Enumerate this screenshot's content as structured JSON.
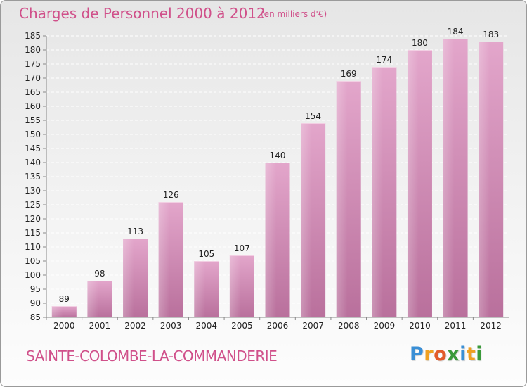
{
  "title": "Charges de Personnel 2000 à 2012",
  "subtitle": "(en milliers d'€)",
  "commune": "SAINTE-COLOMBE-LA-COMMANDERIE",
  "brand": {
    "letters": [
      "P",
      "r",
      "o",
      "x",
      "i",
      "t",
      "i"
    ],
    "colors": [
      "#3a8fd6",
      "#f0a020",
      "#e25b2b",
      "#3a9a3a",
      "#3a8fd6",
      "#f0a020",
      "#3a9a3a"
    ]
  },
  "colors": {
    "accent": "#d0508a",
    "bar_light": "#e3a6cb",
    "bar_dark": "#b9709c",
    "grid": "#ffffff",
    "text": "#222222"
  },
  "chart_data": {
    "type": "bar",
    "categories": [
      "2000",
      "2001",
      "2002",
      "2003",
      "2004",
      "2005",
      "2006",
      "2007",
      "2008",
      "2009",
      "2010",
      "2011",
      "2012"
    ],
    "values": [
      89,
      98,
      113,
      126,
      105,
      107,
      140,
      154,
      169,
      174,
      180,
      184,
      183
    ],
    "ylim": [
      85,
      185
    ],
    "yticks": [
      85,
      90,
      95,
      100,
      105,
      110,
      115,
      120,
      125,
      130,
      135,
      140,
      145,
      150,
      155,
      160,
      165,
      170,
      175,
      180,
      185
    ],
    "grid": "horizontal dashed",
    "data_labels": true
  }
}
